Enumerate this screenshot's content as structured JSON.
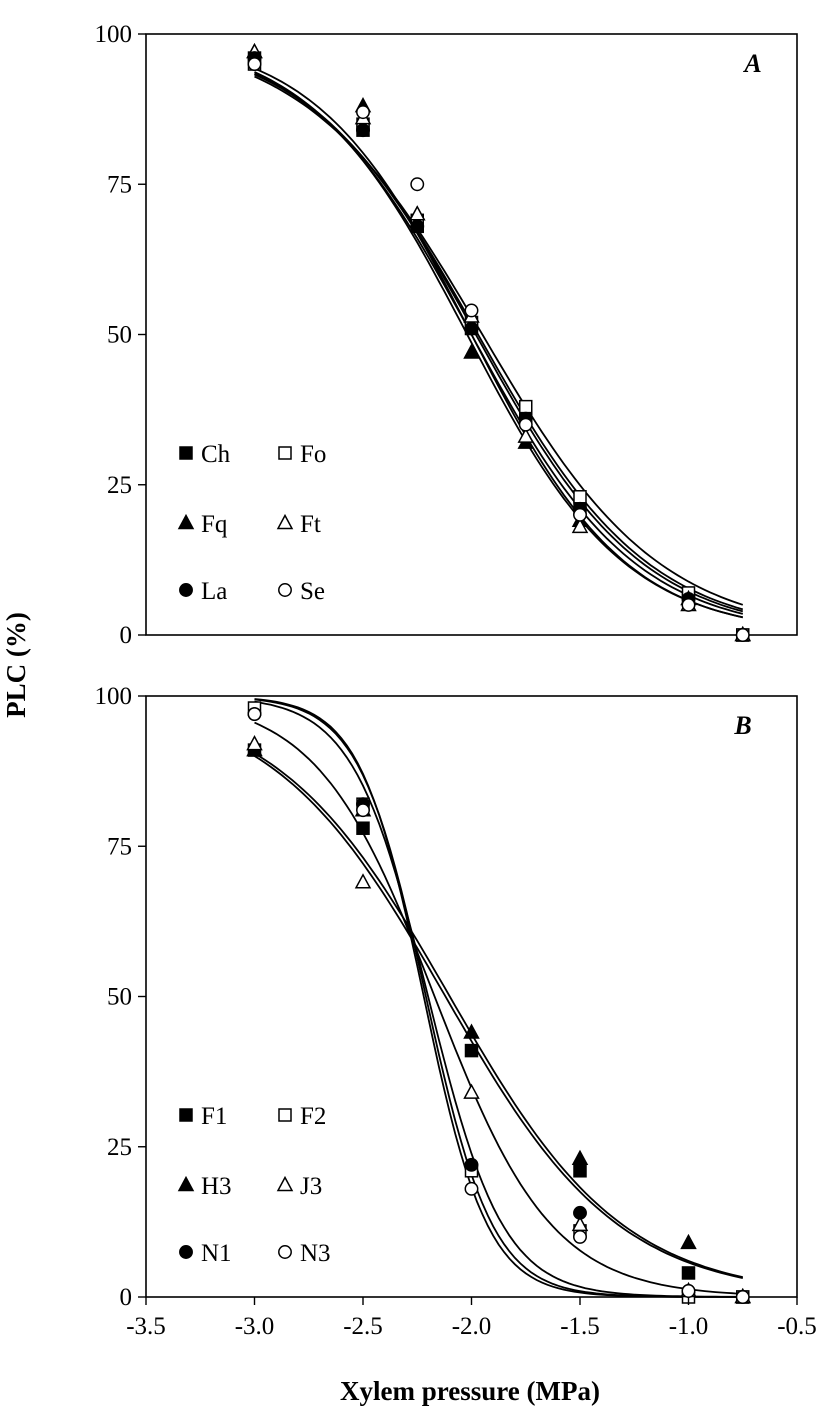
{
  "chart_data": {
    "type": "scatter",
    "ylabel": "PLC (%)",
    "xlabel": "Xylem pressure (MPa)",
    "xlim": [
      -3.5,
      -0.5
    ],
    "ylim": [
      0,
      100
    ],
    "x_ticks": [
      "-3.5",
      "-3.0",
      "-2.5",
      "-2.0",
      "-1.5",
      "-1.0",
      "-0.5"
    ],
    "y_ticks": [
      "0",
      "25",
      "50",
      "75",
      "100"
    ],
    "grid": false,
    "panels": [
      {
        "label": "A",
        "legend_position": "lower-left",
        "series": [
          {
            "name": "Ch",
            "marker": "filled-square",
            "points": [
              [
                -3.0,
                96
              ],
              [
                -2.5,
                84
              ],
              [
                -2.25,
                68
              ],
              [
                -2.0,
                51
              ],
              [
                -1.75,
                36
              ],
              [
                -1.5,
                21
              ],
              [
                -1.0,
                6
              ],
              [
                -0.75,
                0
              ]
            ],
            "curve": {
              "p50": -1.97,
              "slope": 2.55
            }
          },
          {
            "name": "Fo",
            "marker": "open-square",
            "points": [
              [
                -3.0,
                95
              ],
              [
                -2.5,
                85
              ],
              [
                -2.25,
                69
              ],
              [
                -2.0,
                52
              ],
              [
                -1.75,
                38
              ],
              [
                -1.5,
                23
              ],
              [
                -1.0,
                7
              ],
              [
                -0.75,
                0
              ]
            ],
            "curve": {
              "p50": -1.95,
              "slope": 2.45
            }
          },
          {
            "name": "Fq",
            "marker": "filled-triangle",
            "points": [
              [
                -3.0,
                97
              ],
              [
                -2.5,
                88
              ],
              [
                -2.25,
                70
              ],
              [
                -2.0,
                47
              ],
              [
                -1.75,
                32
              ],
              [
                -1.5,
                19
              ],
              [
                -1.0,
                6
              ],
              [
                -0.75,
                0
              ]
            ],
            "curve": {
              "p50": -2.0,
              "slope": 2.8
            }
          },
          {
            "name": "Ft",
            "marker": "open-triangle",
            "points": [
              [
                -3.0,
                97
              ],
              [
                -2.5,
                86
              ],
              [
                -2.25,
                70
              ],
              [
                -2.0,
                53
              ],
              [
                -1.75,
                33
              ],
              [
                -1.5,
                18
              ],
              [
                -1.0,
                5
              ],
              [
                -0.75,
                0
              ]
            ],
            "curve": {
              "p50": -2.02,
              "slope": 2.75
            }
          },
          {
            "name": "La",
            "marker": "filled-circle",
            "points": [
              [
                -3.0,
                96
              ],
              [
                -2.5,
                84
              ],
              [
                -2.25,
                68
              ],
              [
                -2.0,
                51
              ],
              [
                -1.75,
                36
              ],
              [
                -1.5,
                21
              ],
              [
                -1.0,
                6
              ],
              [
                -0.75,
                0
              ]
            ],
            "curve": {
              "p50": -1.98,
              "slope": 2.6
            }
          },
          {
            "name": "Se",
            "marker": "open-circle",
            "points": [
              [
                -3.0,
                95
              ],
              [
                -2.5,
                87
              ],
              [
                -2.25,
                75
              ],
              [
                -2.0,
                54
              ],
              [
                -1.75,
                35
              ],
              [
                -1.5,
                20
              ],
              [
                -1.0,
                5
              ],
              [
                -0.75,
                0
              ]
            ],
            "curve": {
              "p50": -2.0,
              "slope": 2.65
            }
          }
        ]
      },
      {
        "label": "B",
        "legend_position": "lower-left",
        "series": [
          {
            "name": "F1",
            "marker": "filled-square",
            "points": [
              [
                -3.0,
                91
              ],
              [
                -2.5,
                78
              ],
              [
                -2.0,
                41
              ],
              [
                -1.5,
                21
              ],
              [
                -1.0,
                4
              ],
              [
                -0.75,
                0
              ]
            ],
            "curve": {
              "p50": -2.12,
              "slope": 2.5
            }
          },
          {
            "name": "F2",
            "marker": "open-square",
            "points": [
              [
                -3.0,
                98
              ],
              [
                -2.5,
                82
              ],
              [
                -2.0,
                21
              ],
              [
                -1.5,
                11
              ],
              [
                -1.0,
                0
              ],
              [
                -0.75,
                0
              ]
            ],
            "curve": {
              "p50": -2.21,
              "slope": 6.5
            }
          },
          {
            "name": "H3",
            "marker": "filled-triangle",
            "points": [
              [
                -3.0,
                91
              ],
              [
                -2.5,
                81
              ],
              [
                -2.0,
                44
              ],
              [
                -1.5,
                23
              ],
              [
                -1.0,
                9
              ],
              [
                -0.75,
                0
              ]
            ],
            "curve": {
              "p50": -2.1,
              "slope": 2.5
            }
          },
          {
            "name": "J3",
            "marker": "open-triangle",
            "points": [
              [
                -3.0,
                92
              ],
              [
                -2.5,
                69
              ],
              [
                -2.0,
                34
              ],
              [
                -1.5,
                12
              ],
              [
                -1.0,
                1
              ],
              [
                -0.75,
                0
              ]
            ],
            "curve": {
              "p50": -2.17,
              "slope": 3.7
            }
          },
          {
            "name": "N1",
            "marker": "filled-circle",
            "points": [
              [
                -3.0,
                97
              ],
              [
                -2.5,
                82
              ],
              [
                -2.0,
                22
              ],
              [
                -1.5,
                14
              ],
              [
                -1.0,
                1
              ],
              [
                -0.75,
                0
              ]
            ],
            "curve": {
              "p50": -2.2,
              "slope": 5.8
            }
          },
          {
            "name": "N3",
            "marker": "open-circle",
            "points": [
              [
                -3.0,
                97
              ],
              [
                -2.5,
                81
              ],
              [
                -2.0,
                18
              ],
              [
                -1.5,
                10
              ],
              [
                -1.0,
                1
              ],
              [
                -0.75,
                0
              ]
            ],
            "curve": {
              "p50": -2.22,
              "slope": 6.8
            }
          }
        ]
      }
    ]
  }
}
